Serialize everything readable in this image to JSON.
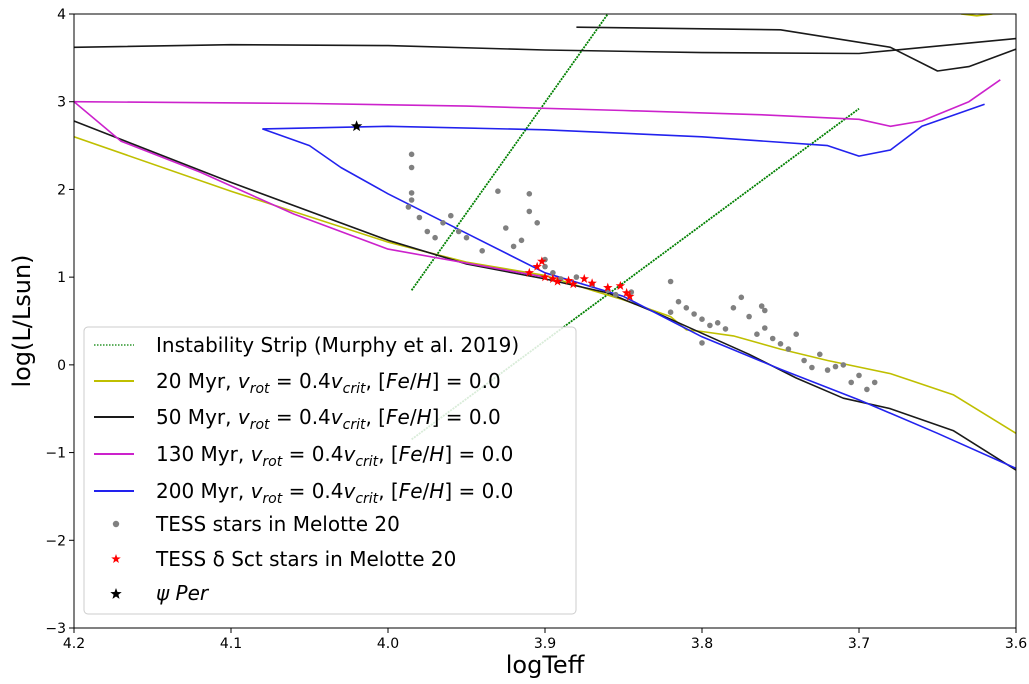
{
  "chart_data": {
    "type": "line",
    "xlabel": "logTeff",
    "ylabel": "log(L/Lsun)",
    "xlim": [
      4.2,
      3.6
    ],
    "ylim": [
      -3,
      4
    ],
    "x_ticks": [
      "4.2",
      "4.1",
      "4.0",
      "3.9",
      "3.8",
      "3.7",
      "3.6"
    ],
    "y_ticks": [
      "−3",
      "−2",
      "−1",
      "0",
      "1",
      "2",
      "3",
      "4"
    ],
    "legend_position": "lower-left",
    "instability_strip": {
      "name": "Instability Strip (Murphy et al. 2019)",
      "color": "#008000",
      "edges": [
        [
          [
            3.985,
            0.85
          ],
          [
            3.86,
            4.0
          ]
        ],
        [
          [
            3.985,
            -0.85
          ],
          [
            3.7,
            2.92
          ]
        ]
      ]
    },
    "series": [
      {
        "name": "20 Myr, v_rot = 0.4v_crit, [Fe/H] = 0.0",
        "name_parts": [
          "20 Myr, ",
          "v",
          "rot",
          " = 0.4",
          "v",
          "crit",
          ", [",
          "Fe",
          "/",
          "H",
          "] = 0.0"
        ],
        "color": "#bfbf00",
        "points": [
          [
            4.2,
            2.6
          ],
          [
            4.1,
            1.98
          ],
          [
            4.0,
            1.4
          ],
          [
            3.95,
            1.17
          ],
          [
            3.9,
            1.02
          ],
          [
            3.87,
            0.85
          ],
          [
            3.85,
            0.74
          ],
          [
            3.82,
            0.55
          ],
          [
            3.81,
            0.4
          ],
          [
            3.8,
            0.38
          ],
          [
            3.78,
            0.33
          ],
          [
            3.75,
            0.18
          ],
          [
            3.72,
            0.05
          ],
          [
            3.68,
            -0.1
          ],
          [
            3.64,
            -0.34
          ],
          [
            3.6,
            -0.78
          ]
        ],
        "top_points": [
          [
            3.615,
            4.0
          ],
          [
            3.625,
            3.98
          ],
          [
            3.635,
            4.0
          ]
        ]
      },
      {
        "name": "50 Myr, v_rot = 0.4v_crit, [Fe/H] = 0.0",
        "name_parts": [
          "50 Myr, ",
          "v",
          "rot",
          " = 0.4",
          "v",
          "crit",
          ", [",
          "Fe",
          "/",
          "H",
          "] = 0.0"
        ],
        "color": "#1a1a1a",
        "points": [
          [
            4.2,
            2.78
          ],
          [
            4.1,
            2.08
          ],
          [
            4.0,
            1.42
          ],
          [
            3.95,
            1.15
          ],
          [
            3.9,
            0.98
          ],
          [
            3.86,
            0.82
          ],
          [
            3.83,
            0.6
          ],
          [
            3.8,
            0.36
          ],
          [
            3.77,
            0.12
          ],
          [
            3.74,
            -0.15
          ],
          [
            3.71,
            -0.38
          ],
          [
            3.68,
            -0.5
          ],
          [
            3.64,
            -0.75
          ],
          [
            3.6,
            -1.2
          ]
        ],
        "top_points": [
          [
            4.2,
            3.62
          ],
          [
            4.1,
            3.65
          ],
          [
            4.0,
            3.64
          ],
          [
            3.9,
            3.59
          ],
          [
            3.8,
            3.56
          ],
          [
            3.7,
            3.55
          ],
          [
            3.6,
            3.72
          ]
        ],
        "top_points_2": [
          [
            3.88,
            3.85
          ],
          [
            3.75,
            3.82
          ],
          [
            3.68,
            3.62
          ],
          [
            3.65,
            3.35
          ],
          [
            3.63,
            3.4
          ],
          [
            3.6,
            3.6
          ]
        ]
      },
      {
        "name": "130 Myr, v_rot = 0.4v_crit, [Fe/H] = 0.0",
        "name_parts": [
          "130 Myr, ",
          "v",
          "rot",
          " = 0.4",
          "v",
          "crit",
          ", [",
          "Fe",
          "/",
          "H",
          "] = 0.0"
        ],
        "color": "#cc22cc",
        "points": [
          [
            4.2,
            3.0
          ],
          [
            4.05,
            2.98
          ],
          [
            3.95,
            2.95
          ],
          [
            3.85,
            2.9
          ],
          [
            3.76,
            2.85
          ],
          [
            3.7,
            2.8
          ],
          [
            3.68,
            2.72
          ],
          [
            3.66,
            2.78
          ],
          [
            3.63,
            3.0
          ],
          [
            3.61,
            3.25
          ]
        ],
        "loop_points": [
          [
            4.2,
            3.0
          ],
          [
            4.17,
            2.55
          ],
          [
            4.12,
            2.2
          ],
          [
            4.06,
            1.72
          ],
          [
            4.0,
            1.32
          ],
          [
            3.9,
            1.0
          ]
        ]
      },
      {
        "name": "200 Myr, v_rot = 0.4v_crit, [Fe/H] = 0.0",
        "name_parts": [
          "200 Myr, ",
          "v",
          "rot",
          " = 0.4",
          "v",
          "crit",
          ", [",
          "Fe",
          "/",
          "H",
          "] = 0.0"
        ],
        "color": "#2222ee",
        "points": [
          [
            4.08,
            2.69
          ],
          [
            4.0,
            2.72
          ],
          [
            3.9,
            2.68
          ],
          [
            3.8,
            2.6
          ],
          [
            3.72,
            2.5
          ],
          [
            3.7,
            2.38
          ],
          [
            3.68,
            2.45
          ],
          [
            3.66,
            2.72
          ],
          [
            3.62,
            2.97
          ]
        ],
        "loop_points": [
          [
            4.08,
            2.69
          ],
          [
            4.05,
            2.5
          ],
          [
            4.03,
            2.25
          ],
          [
            4.0,
            1.95
          ],
          [
            3.95,
            1.5
          ],
          [
            3.9,
            1.05
          ],
          [
            3.85,
            0.78
          ],
          [
            3.8,
            0.32
          ],
          [
            3.75,
            -0.05
          ],
          [
            3.7,
            -0.4
          ],
          [
            3.65,
            -0.78
          ],
          [
            3.6,
            -1.18
          ]
        ]
      }
    ],
    "scatter": [
      {
        "name": "TESS stars in Melotte 20",
        "color": "#808080",
        "marker": "dot",
        "points": [
          [
            3.985,
            2.4
          ],
          [
            3.985,
            2.25
          ],
          [
            3.985,
            1.96
          ],
          [
            3.985,
            1.88
          ],
          [
            3.987,
            1.8
          ],
          [
            3.98,
            1.68
          ],
          [
            3.975,
            1.52
          ],
          [
            3.97,
            1.45
          ],
          [
            3.965,
            1.62
          ],
          [
            3.96,
            1.7
          ],
          [
            3.955,
            1.52
          ],
          [
            3.95,
            1.45
          ],
          [
            3.94,
            1.3
          ],
          [
            3.93,
            1.98
          ],
          [
            3.925,
            1.56
          ],
          [
            3.92,
            1.35
          ],
          [
            3.915,
            1.42
          ],
          [
            3.91,
            1.95
          ],
          [
            3.91,
            1.75
          ],
          [
            3.905,
            1.62
          ],
          [
            3.9,
            1.2
          ],
          [
            3.9,
            1.12
          ],
          [
            3.895,
            1.05
          ],
          [
            3.89,
            0.98
          ],
          [
            3.88,
            1.0
          ],
          [
            3.87,
            0.92
          ],
          [
            3.86,
            0.85
          ],
          [
            3.855,
            0.8
          ],
          [
            3.845,
            0.83
          ],
          [
            3.82,
            0.95
          ],
          [
            3.815,
            0.72
          ],
          [
            3.81,
            0.65
          ],
          [
            3.805,
            0.58
          ],
          [
            3.8,
            0.52
          ],
          [
            3.795,
            0.45
          ],
          [
            3.79,
            0.48
          ],
          [
            3.785,
            0.41
          ],
          [
            3.78,
            0.65
          ],
          [
            3.775,
            0.77
          ],
          [
            3.77,
            0.55
          ],
          [
            3.765,
            0.35
          ],
          [
            3.76,
            0.42
          ],
          [
            3.755,
            0.3
          ],
          [
            3.75,
            0.24
          ],
          [
            3.745,
            0.18
          ],
          [
            3.74,
            0.35
          ],
          [
            3.735,
            0.05
          ],
          [
            3.73,
            -0.03
          ],
          [
            3.725,
            0.12
          ],
          [
            3.72,
            -0.06
          ],
          [
            3.715,
            -0.02
          ],
          [
            3.71,
            0.0
          ],
          [
            3.705,
            -0.2
          ],
          [
            3.7,
            -0.12
          ],
          [
            3.695,
            -0.28
          ],
          [
            3.69,
            -0.2
          ],
          [
            3.76,
            0.62
          ],
          [
            3.762,
            0.67
          ],
          [
            3.82,
            0.6
          ],
          [
            3.8,
            0.25
          ]
        ]
      },
      {
        "name": "TESS δ Sct stars in Melotte 20",
        "color": "#ff0000",
        "marker": "star",
        "points": [
          [
            3.91,
            1.05
          ],
          [
            3.905,
            1.12
          ],
          [
            3.902,
            1.18
          ],
          [
            3.9,
            1.0
          ],
          [
            3.895,
            0.98
          ],
          [
            3.892,
            0.95
          ],
          [
            3.885,
            0.96
          ],
          [
            3.882,
            0.92
          ],
          [
            3.875,
            0.98
          ],
          [
            3.87,
            0.93
          ],
          [
            3.86,
            0.88
          ],
          [
            3.852,
            0.9
          ],
          [
            3.846,
            0.78
          ],
          [
            3.848,
            0.82
          ]
        ]
      },
      {
        "name": "ψ Per",
        "color": "#000000",
        "marker": "star",
        "points": [
          [
            4.02,
            2.72
          ]
        ]
      }
    ]
  },
  "legend": {
    "strip_label": "Instability Strip (Murphy et al. 2019)",
    "tess_label": "TESS stars in Melotte 20",
    "dsct_label": "TESS δ Sct stars in Melotte 20",
    "psi_label": "ψ Per"
  }
}
